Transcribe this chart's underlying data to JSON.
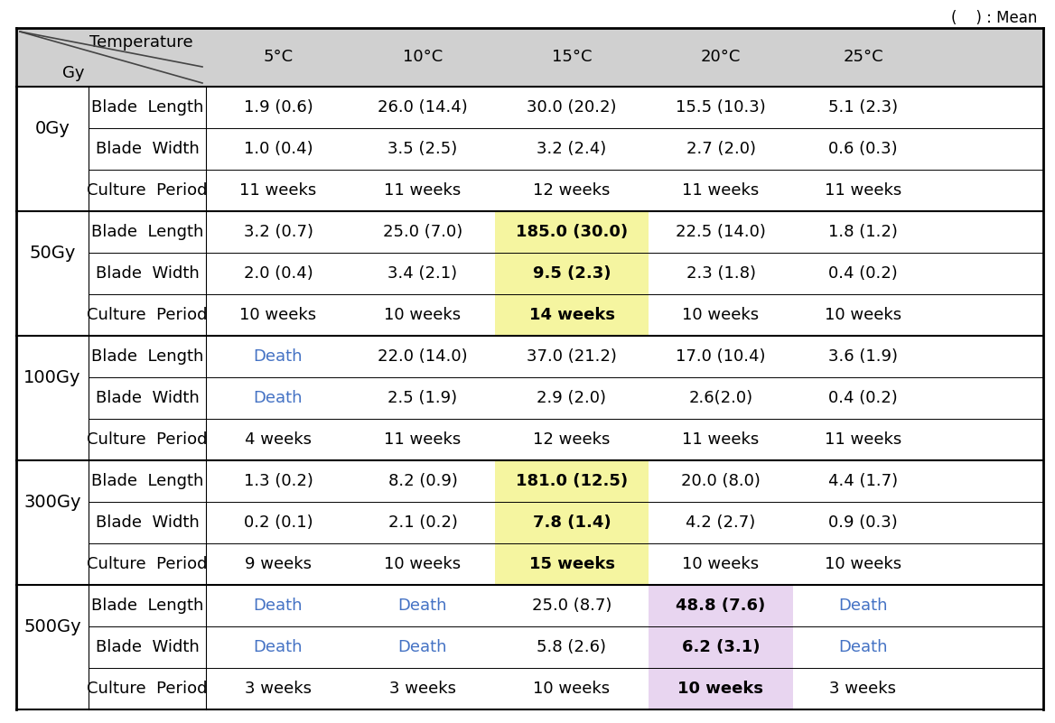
{
  "title_note": "(    ) : Mean",
  "temps": [
    "5°C",
    "10°C",
    "15°C",
    "20°C",
    "25°C"
  ],
  "groups": [
    {
      "label": "0Gy",
      "rows": [
        {
          "type": "Blade  Length",
          "values": [
            "1.9 (0.6)",
            "26.0 (14.4)",
            "30.0 (20.2)",
            "15.5 (10.3)",
            "5.1 (2.3)"
          ],
          "death_cols": []
        },
        {
          "type": "Blade  Width",
          "values": [
            "1.0 (0.4)",
            "3.5 (2.5)",
            "3.2 (2.4)",
            "2.7 (2.0)",
            "0.6 (0.3)"
          ],
          "death_cols": []
        },
        {
          "type": "Culture  Period",
          "values": [
            "11 weeks",
            "11 weeks",
            "12 weeks",
            "11 weeks",
            "11 weeks"
          ],
          "death_cols": []
        }
      ],
      "highlight_col": -1,
      "highlight_color": "#ffffff"
    },
    {
      "label": "50Gy",
      "rows": [
        {
          "type": "Blade  Length",
          "values": [
            "3.2 (0.7)",
            "25.0 (7.0)",
            "185.0 (30.0)",
            "22.5 (14.0)",
            "1.8 (1.2)"
          ],
          "death_cols": []
        },
        {
          "type": "Blade  Width",
          "values": [
            "2.0 (0.4)",
            "3.4 (2.1)",
            "9.5 (2.3)",
            "2.3 (1.8)",
            "0.4 (0.2)"
          ],
          "death_cols": []
        },
        {
          "type": "Culture  Period",
          "values": [
            "10 weeks",
            "10 weeks",
            "14 weeks",
            "10 weeks",
            "10 weeks"
          ],
          "death_cols": []
        }
      ],
      "highlight_col": 2,
      "highlight_color": "#f5f5a0"
    },
    {
      "label": "100Gy",
      "rows": [
        {
          "type": "Blade  Length",
          "values": [
            "Death",
            "22.0 (14.0)",
            "37.0 (21.2)",
            "17.0 (10.4)",
            "3.6 (1.9)"
          ],
          "death_cols": [
            0
          ]
        },
        {
          "type": "Blade  Width",
          "values": [
            "Death",
            "2.5 (1.9)",
            "2.9 (2.0)",
            "2.6(2.0)",
            "0.4 (0.2)"
          ],
          "death_cols": [
            0
          ]
        },
        {
          "type": "Culture  Period",
          "values": [
            "4 weeks",
            "11 weeks",
            "12 weeks",
            "11 weeks",
            "11 weeks"
          ],
          "death_cols": []
        }
      ],
      "highlight_col": -1,
      "highlight_color": "#ffffff"
    },
    {
      "label": "300Gy",
      "rows": [
        {
          "type": "Blade  Length",
          "values": [
            "1.3 (0.2)",
            "8.2 (0.9)",
            "181.0 (12.5)",
            "20.0 (8.0)",
            "4.4 (1.7)"
          ],
          "death_cols": []
        },
        {
          "type": "Blade  Width",
          "values": [
            "0.2 (0.1)",
            "2.1 (0.2)",
            "7.8 (1.4)",
            "4.2 (2.7)",
            "0.9 (0.3)"
          ],
          "death_cols": []
        },
        {
          "type": "Culture  Period",
          "values": [
            "9 weeks",
            "10 weeks",
            "15 weeks",
            "10 weeks",
            "10 weeks"
          ],
          "death_cols": []
        }
      ],
      "highlight_col": 2,
      "highlight_color": "#f5f5a0"
    },
    {
      "label": "500Gy",
      "rows": [
        {
          "type": "Blade  Length",
          "values": [
            "Death",
            "Death",
            "25.0 (8.7)",
            "48.8 (7.6)",
            "Death"
          ],
          "death_cols": [
            0,
            1,
            4
          ]
        },
        {
          "type": "Blade  Width",
          "values": [
            "Death",
            "Death",
            "5.8 (2.6)",
            "6.2 (3.1)",
            "Death"
          ],
          "death_cols": [
            0,
            1,
            4
          ]
        },
        {
          "type": "Culture  Period",
          "values": [
            "3 weeks",
            "3 weeks",
            "10 weeks",
            "10 weeks",
            "3 weeks"
          ],
          "death_cols": []
        }
      ],
      "highlight_col": 3,
      "highlight_color": "#e8d5f0"
    }
  ],
  "death_color": "#4472c4",
  "bg_header": "#d0d0d0",
  "text_color": "#000000",
  "font_size": 13,
  "header_font_size": 13
}
